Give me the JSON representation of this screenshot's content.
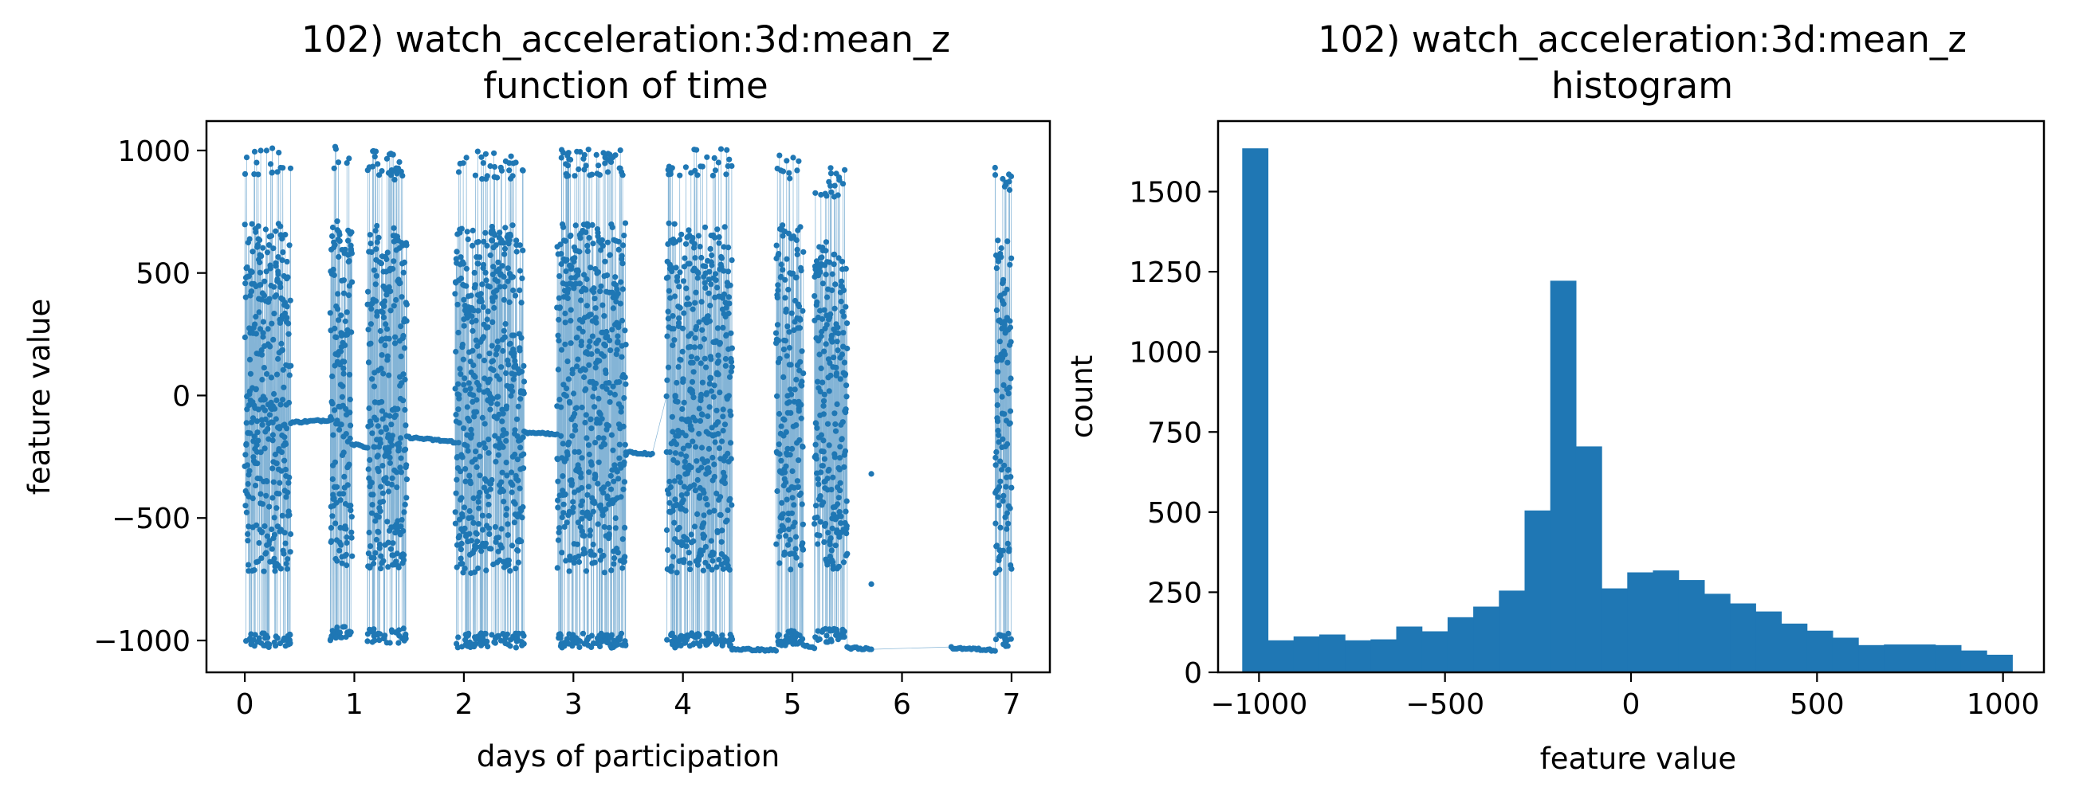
{
  "colors": {
    "series": "#1f77b4",
    "axes": "#000000",
    "background": "#ffffff"
  },
  "chart_data": [
    {
      "type": "scatter",
      "title": "102) watch_acceleration:3d:mean_z\nfunction of time",
      "xlabel": "days of participation",
      "ylabel": "feature value",
      "xlim": [
        -0.35,
        7.35
      ],
      "ylim": [
        -1130,
        1120
      ],
      "xticks": [
        0,
        1,
        2,
        3,
        4,
        5,
        6,
        7
      ],
      "xtick_labels": [
        "0",
        "1",
        "2",
        "3",
        "4",
        "5",
        "6",
        "7"
      ],
      "yticks": [
        -1000,
        -500,
        0,
        500,
        1000
      ],
      "ytick_labels": [
        "−1000",
        "−500",
        "0",
        "500",
        "1000"
      ],
      "grid": false,
      "marker": "dot, connected by thin line",
      "segments": [
        {
          "kind": "dense",
          "x": [
            0.0,
            0.42
          ],
          "ymin": -1030,
          "ymax": 1010
        },
        {
          "kind": "flat",
          "x": [
            0.42,
            0.78
          ],
          "y": [
            -110,
            -100
          ]
        },
        {
          "kind": "dense",
          "x": [
            0.78,
            0.98
          ],
          "ymin": -1000,
          "ymax": 1020
        },
        {
          "kind": "flat",
          "x": [
            0.98,
            1.12
          ],
          "y": [
            -200,
            -210
          ]
        },
        {
          "kind": "dense",
          "x": [
            1.12,
            1.48
          ],
          "ymin": -1010,
          "ymax": 1000
        },
        {
          "kind": "flat",
          "x": [
            1.48,
            1.92
          ],
          "y": [
            -170,
            -190
          ]
        },
        {
          "kind": "dense",
          "x": [
            1.92,
            2.55
          ],
          "ymin": -1030,
          "ymax": 1000
        },
        {
          "kind": "flat",
          "x": [
            2.55,
            2.85
          ],
          "y": [
            -150,
            -160
          ]
        },
        {
          "kind": "dense",
          "x": [
            2.85,
            3.48
          ],
          "ymin": -1030,
          "ymax": 1010
        },
        {
          "kind": "flat",
          "x": [
            3.48,
            3.72
          ],
          "y": [
            -230,
            -240
          ]
        },
        {
          "kind": "dense",
          "x": [
            3.85,
            4.45
          ],
          "ymin": -1030,
          "ymax": 1010
        },
        {
          "kind": "flat",
          "x": [
            4.45,
            4.85
          ],
          "y": [
            -1035,
            -1040
          ]
        },
        {
          "kind": "dense",
          "x": [
            4.85,
            5.1
          ],
          "ymin": -1020,
          "ymax": 1000
        },
        {
          "kind": "flat",
          "x": [
            5.1,
            5.2
          ],
          "y": [
            -1020,
            -1030
          ]
        },
        {
          "kind": "dense",
          "x": [
            5.2,
            5.5
          ],
          "ymin": -1010,
          "ymax": 930
        },
        {
          "kind": "flat",
          "x": [
            5.5,
            5.72
          ],
          "y": [
            -1030,
            -1035
          ]
        },
        {
          "kind": "flat",
          "x": [
            6.45,
            6.85
          ],
          "y": [
            -1030,
            -1040
          ]
        },
        {
          "kind": "dense",
          "x": [
            6.85,
            7.0
          ],
          "ymin": -1030,
          "ymax": 940
        }
      ],
      "outliers": [
        {
          "x": 5.72,
          "y": -320
        },
        {
          "x": 5.72,
          "y": -770
        }
      ]
    },
    {
      "type": "bar",
      "title": "102) watch_acceleration:3d:mean_z\nhistogram",
      "xlabel": "feature value",
      "ylabel": "count",
      "xlim": [
        -1110,
        1110
      ],
      "ylim": [
        0,
        1720
      ],
      "xticks": [
        -1000,
        -500,
        0,
        500,
        1000
      ],
      "xtick_labels": [
        "−1000",
        "−500",
        "0",
        "500",
        "1000"
      ],
      "yticks": [
        0,
        250,
        500,
        750,
        1000,
        1250,
        1500
      ],
      "ytick_labels": [
        "0",
        "250",
        "500",
        "750",
        "1000",
        "1250",
        "1500"
      ],
      "grid": false,
      "bin_start": -1045,
      "bin_width": 69,
      "values": [
        1635,
        100,
        112,
        118,
        100,
        103,
        143,
        128,
        172,
        205,
        255,
        505,
        1222,
        705,
        262,
        312,
        318,
        288,
        245,
        215,
        190,
        152,
        130,
        108,
        85,
        87,
        87,
        85,
        68,
        55
      ]
    }
  ]
}
